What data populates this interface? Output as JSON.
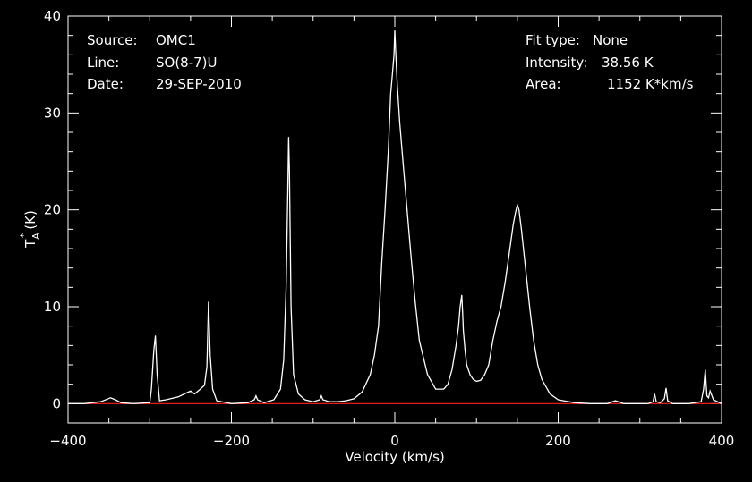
{
  "chart_data": {
    "type": "line",
    "xlabel": "Velocity (km/s)",
    "ylabel": "T",
    "ylabel_sub": "A",
    "ylabel_sup": "*",
    "ylabel_unit": "(K)",
    "xlim": [
      -400,
      400
    ],
    "ylim": [
      -2,
      40
    ],
    "xticks": [
      -400,
      -200,
      0,
      200,
      400
    ],
    "yticks": [
      0,
      10,
      20,
      30,
      40
    ],
    "grid": false,
    "baseline": {
      "y": 0,
      "color": "#ff2020"
    },
    "line_color": "#ffffff",
    "background": "#000000",
    "series": [
      {
        "x": [
          -400,
          -380,
          -360,
          -348,
          -342,
          -335,
          -320,
          -300,
          -298,
          -295,
          -293,
          -291,
          -288,
          -280,
          -265,
          -255,
          -250,
          -245,
          -238,
          -233,
          -230,
          -228,
          -226,
          -223,
          -218,
          -200,
          -180,
          -172,
          -170,
          -168,
          -160,
          -148,
          -140,
          -136,
          -133,
          -131,
          -130,
          -129,
          -127,
          -124,
          -118,
          -110,
          -100,
          -92,
          -90,
          -88,
          -80,
          -70,
          -60,
          -50,
          -40,
          -30,
          -25,
          -20,
          -16,
          -12,
          -8,
          -5,
          -3,
          -1,
          0,
          1,
          3,
          6,
          10,
          15,
          20,
          25,
          30,
          40,
          50,
          60,
          65,
          70,
          75,
          78,
          80,
          82,
          83,
          84,
          86,
          88,
          92,
          96,
          100,
          105,
          110,
          115,
          120,
          125,
          130,
          135,
          140,
          145,
          148,
          150,
          152,
          155,
          160,
          165,
          170,
          175,
          180,
          190,
          200,
          220,
          240,
          260,
          270,
          280,
          300,
          310,
          316,
          318,
          320,
          325,
          330,
          332,
          334,
          340,
          360,
          375,
          378,
          380,
          382,
          384,
          386,
          390,
          400
        ],
        "values": [
          0,
          0,
          0.2,
          0.6,
          0.4,
          0.1,
          0,
          0.1,
          1.5,
          5.5,
          7.0,
          3.0,
          0.3,
          0.4,
          0.7,
          1.1,
          1.3,
          1.0,
          1.5,
          1.9,
          3.8,
          10.5,
          5.0,
          1.5,
          0.3,
          0,
          0.1,
          0.4,
          0.8,
          0.4,
          0.1,
          0.4,
          1.5,
          4.5,
          12.0,
          22.0,
          27.5,
          24.0,
          10.0,
          3.0,
          1.0,
          0.4,
          0.2,
          0.4,
          0.8,
          0.4,
          0.2,
          0.2,
          0.3,
          0.5,
          1.2,
          3.0,
          5.0,
          8.0,
          14.5,
          20.0,
          26.0,
          32.0,
          34.0,
          36.0,
          38.56,
          36.5,
          33.0,
          29.0,
          25.0,
          20.0,
          15.0,
          10.5,
          6.5,
          3.0,
          1.5,
          1.5,
          2.0,
          3.5,
          6.0,
          8.0,
          10.0,
          11.2,
          9.5,
          7.5,
          5.5,
          4.0,
          3.0,
          2.5,
          2.3,
          2.4,
          3.0,
          4.0,
          6.5,
          8.5,
          10.0,
          12.5,
          15.5,
          18.5,
          19.8,
          20.5,
          20.0,
          18.0,
          14.0,
          10.0,
          6.5,
          4.0,
          2.5,
          1.0,
          0.4,
          0.1,
          0,
          0,
          0.3,
          0,
          0,
          0,
          0.2,
          1.0,
          0.2,
          0.1,
          0.5,
          1.6,
          0.3,
          0,
          0,
          0.2,
          1.5,
          3.5,
          0.8,
          0.6,
          1.3,
          0.4,
          0
        ]
      }
    ]
  },
  "annotations": {
    "source_label": "Source:",
    "source_value": "OMC1",
    "line_label": "Line:",
    "line_value": "SO(8-7)U",
    "date_label": "Date:",
    "date_value": "29-SEP-2010",
    "fit_label": "Fit type:",
    "fit_value": "None",
    "intensity_label": "Intensity:",
    "intensity_value": "38.56 K",
    "area_label": "Area:",
    "area_value": "1152 K*km/s"
  }
}
